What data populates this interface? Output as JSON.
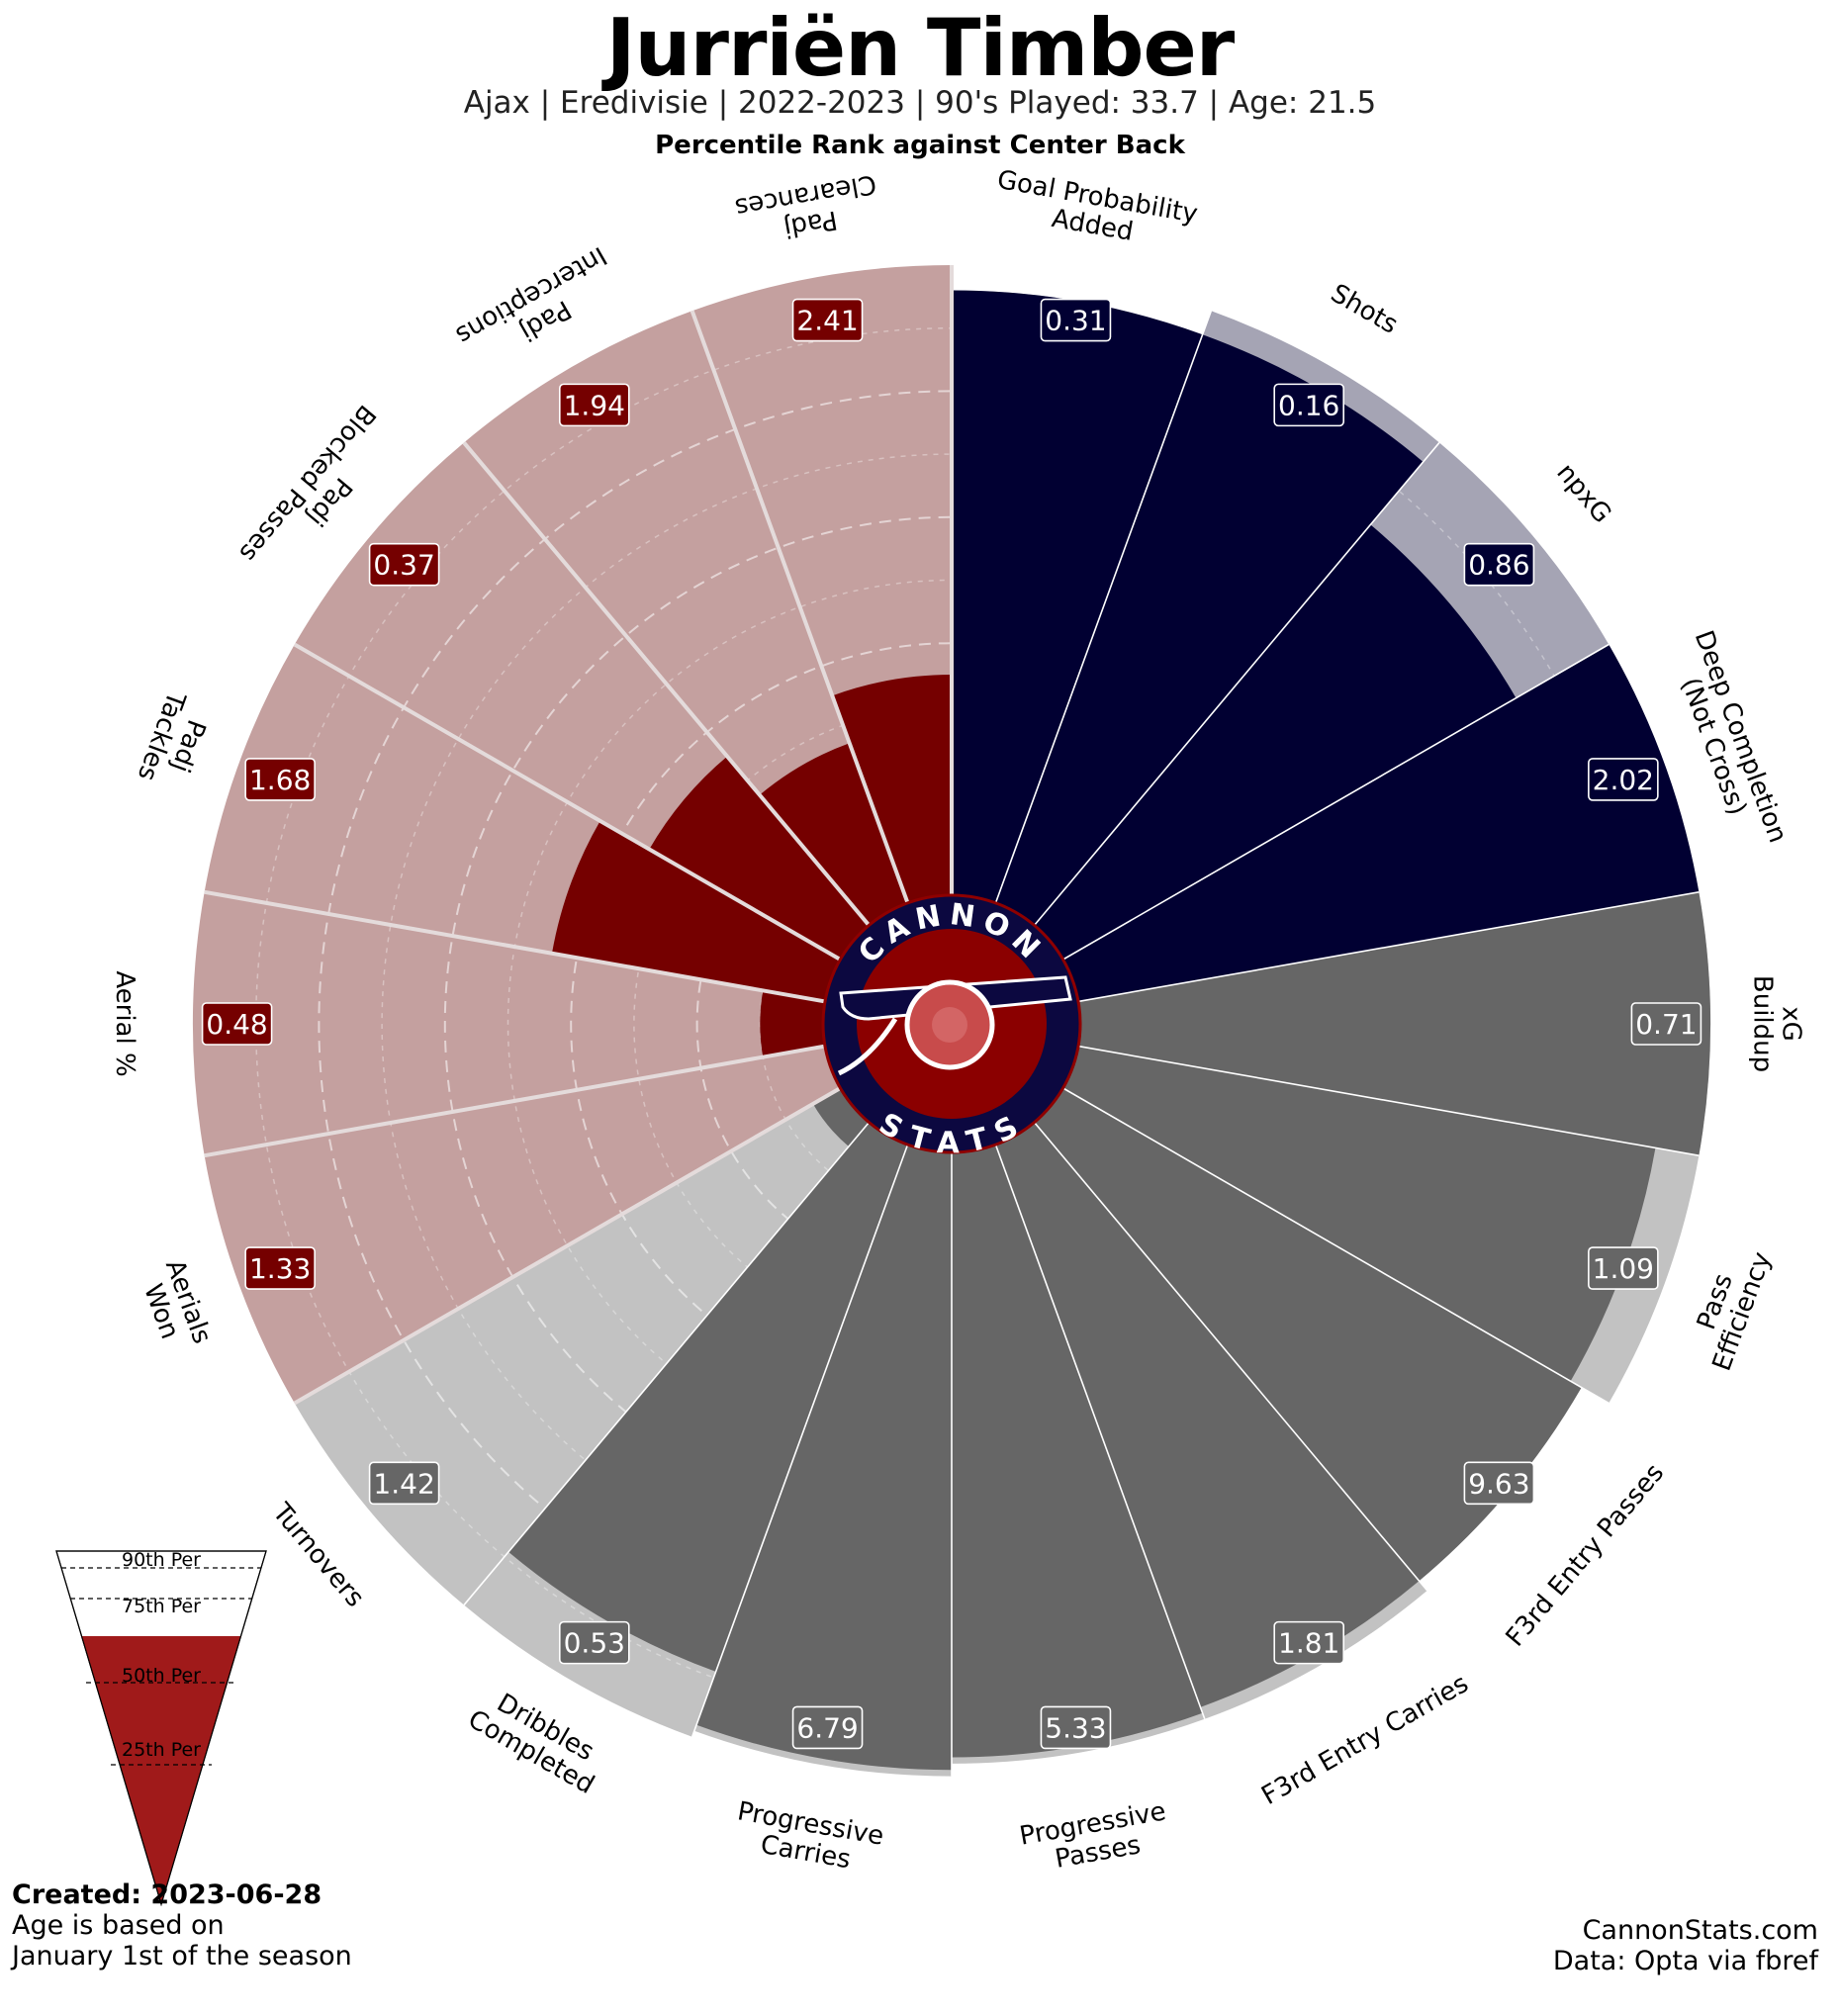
{
  "header": {
    "title": "Jurriën Timber",
    "subtitle": "Ajax  | Eredivisie | 2022-2023 | 90's Played: 33.7 | Age: 21.5",
    "subsubtitle": "Percentile Rank against Center Back"
  },
  "logo": {
    "top_text": "CANNON",
    "bottom_text": "STATS"
  },
  "legend": {
    "labels": [
      "90th Per",
      "75th Per",
      "50th Per",
      "25th Per"
    ]
  },
  "footer": {
    "created": "Created: 2023-06-28",
    "note_line1": "Age is based on",
    "note_line2": "January 1st of the season",
    "site": "CannonStats.com",
    "source": "Data: Opta via fbref"
  },
  "colors": {
    "attack_dark": "#010032",
    "attack_light": "#a5a4b4",
    "possession_dark": "#666666",
    "possession_light": "#c2c2c2",
    "defense_dark": "#750000",
    "defense_light": "#c4a09f",
    "legend_fill": "#a01a1a"
  },
  "chart_data": {
    "type": "pizza",
    "scale": "percentile",
    "range": [
      0,
      100
    ],
    "groups": [
      "attack",
      "possession",
      "defense"
    ],
    "metrics": [
      {
        "label": "Goal Probability\nAdded",
        "value": "0.31",
        "percentile": 96,
        "baseline": 96,
        "group": "attack"
      },
      {
        "label": "Shots",
        "value": "0.16",
        "percentile": 96,
        "baseline": 100,
        "group": "attack"
      },
      {
        "label": "npxG",
        "value": "0.86",
        "percentile": 83,
        "baseline": 100,
        "group": "attack"
      },
      {
        "label": "Deep Completion\n(Not Cross)",
        "value": "2.02",
        "percentile": 100,
        "baseline": 100,
        "group": "attack"
      },
      {
        "label": "xG\nBuildup",
        "value": "0.71",
        "percentile": 100,
        "baseline": 100,
        "group": "possession"
      },
      {
        "label": "Pass\nEfficiency",
        "value": "1.09",
        "percentile": 93,
        "baseline": 100,
        "group": "possession"
      },
      {
        "label": "F3rd Entry Passes",
        "value": "9.63",
        "percentile": 95,
        "baseline": 95,
        "group": "possession"
      },
      {
        "label": "F3rd Entry Carries",
        "value": "1.81",
        "percentile": 95,
        "baseline": 97,
        "group": "possession"
      },
      {
        "label": "Progressive\nPasses",
        "value": "5.33",
        "percentile": 96,
        "baseline": 97,
        "group": "possession"
      },
      {
        "label": "Progressive\nCarries",
        "value": "6.79",
        "percentile": 98,
        "baseline": 99,
        "group": "possession"
      },
      {
        "label": "Dribbles\nCompleted",
        "value": "0.53",
        "percentile": 89,
        "baseline": 100,
        "group": "possession"
      },
      {
        "label": "Turnovers",
        "value": "1.42",
        "percentile": 5,
        "baseline": 100,
        "group": "possession"
      },
      {
        "label": "Aerials\nWon",
        "value": "1.33",
        "percentile": 0,
        "baseline": 100,
        "group": "defense"
      },
      {
        "label": "Aerial %",
        "value": "0.48",
        "percentile": 10,
        "baseline": 100,
        "group": "defense"
      },
      {
        "label": "Padj\nTackles",
        "value": "1.68",
        "percentile": 44,
        "baseline": 100,
        "group": "defense"
      },
      {
        "label": "Padj\nBlocked Passes",
        "value": "0.37",
        "percentile": 35,
        "baseline": 100,
        "group": "defense"
      },
      {
        "label": "Padj\nInterceptions",
        "value": "1.94",
        "percentile": 27,
        "baseline": 100,
        "group": "defense"
      },
      {
        "label": "Padj\nClearances",
        "value": "2.41",
        "percentile": 35,
        "baseline": 100,
        "group": "defense"
      }
    ],
    "reference_rings": [
      25,
      50,
      75,
      90
    ]
  }
}
